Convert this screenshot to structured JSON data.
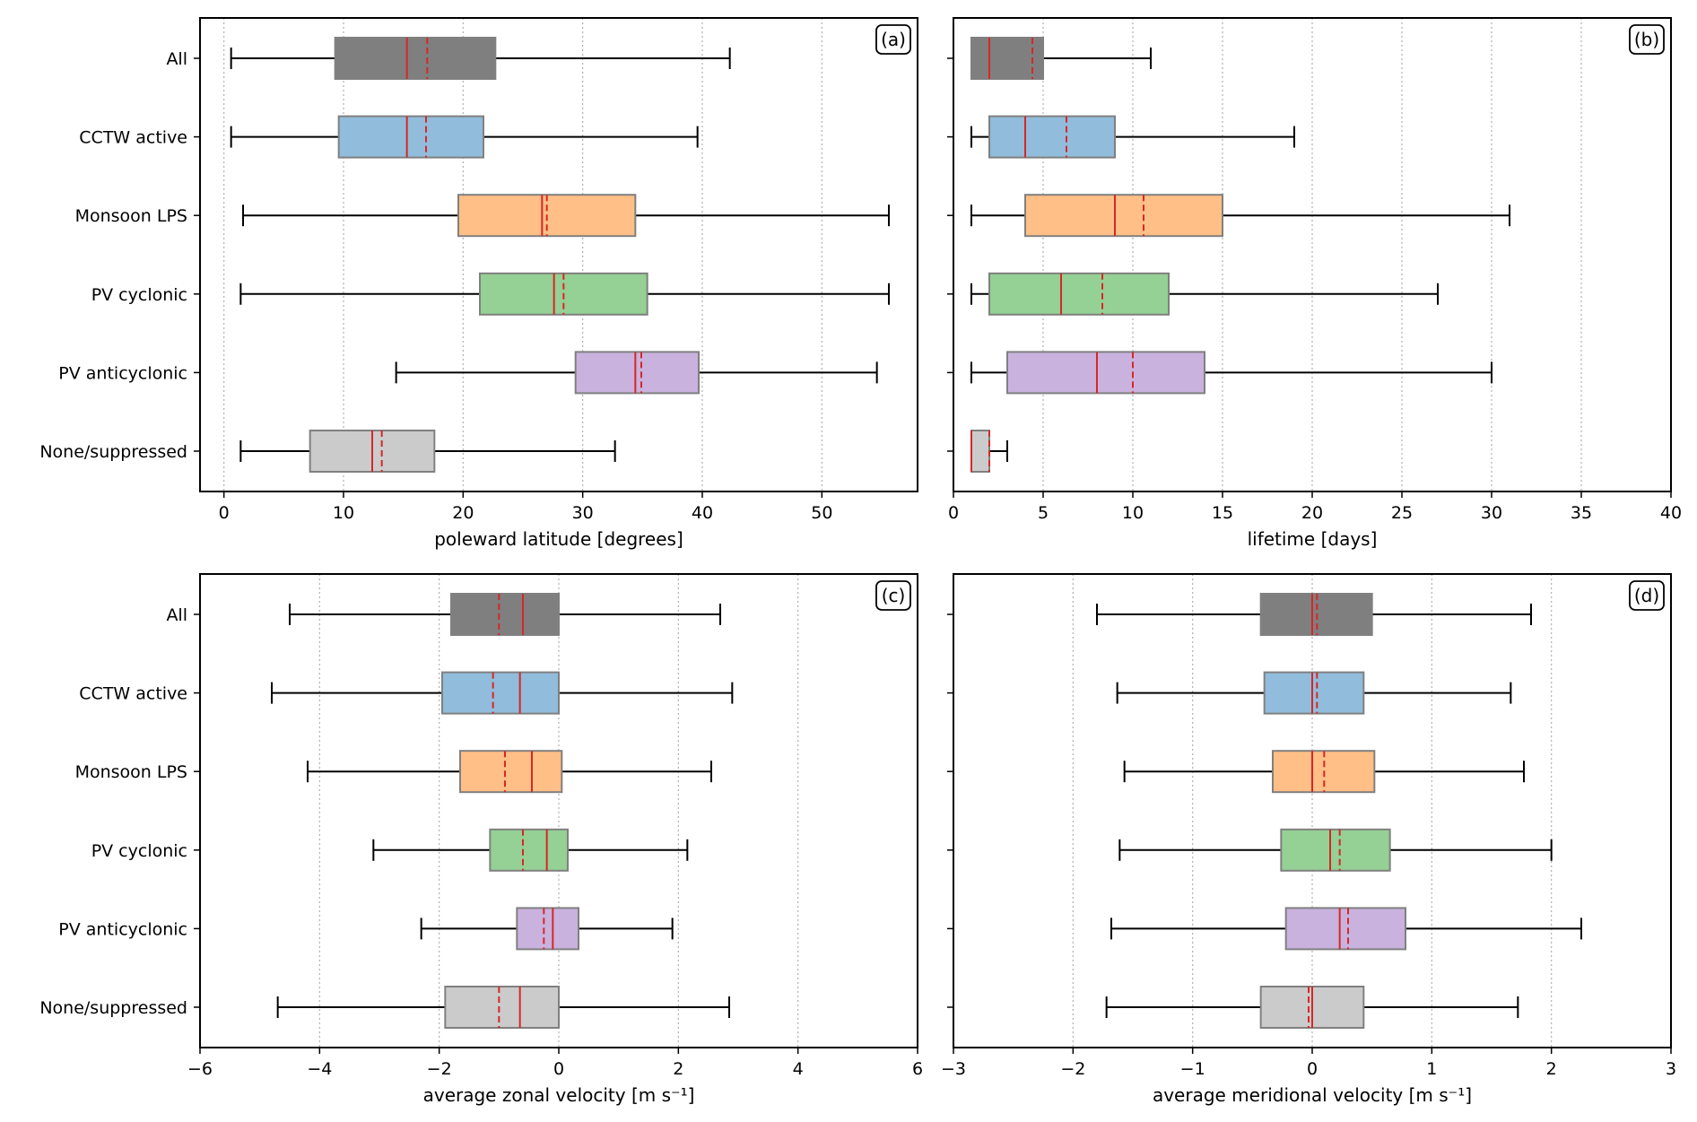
{
  "figure": {
    "categories": [
      "All",
      "CCTW active",
      "Monsoon LPS",
      "PV cyclonic",
      "PV anticyclonic",
      "None/suppressed"
    ],
    "colors": {
      "All": "#7f7f7f",
      "CCTW active": "#91bcdb",
      "Monsoon LPS": "#ffbf86",
      "PV cyclonic": "#95d095",
      "PV anticyclonic": "#c9b2de",
      "None/suppressed": "#cbcbcb"
    },
    "median_color": "#d62728",
    "mean_color": "#d62728",
    "box_edge_color": "#808080"
  },
  "chart_data": [
    {
      "panel": "(a)",
      "type": "boxplot",
      "orientation": "horizontal",
      "xlabel": "poleward latitude [degrees]",
      "xlim": [
        -2,
        58
      ],
      "xticks": [
        0,
        10,
        20,
        30,
        40,
        50
      ],
      "xtick_labels": [
        "0",
        "10",
        "20",
        "30",
        "40",
        "50"
      ],
      "grid": "x-dotted",
      "show_ylabels": true,
      "series": [
        {
          "name": "All",
          "whislo": 0.6,
          "q1": 9.3,
          "median": 15.3,
          "mean": 17.0,
          "q3": 22.7,
          "whishi": 42.3
        },
        {
          "name": "CCTW active",
          "whislo": 0.6,
          "q1": 9.6,
          "median": 15.3,
          "mean": 16.9,
          "q3": 21.7,
          "whishi": 39.6
        },
        {
          "name": "Monsoon LPS",
          "whislo": 1.6,
          "q1": 19.6,
          "median": 26.6,
          "mean": 27.0,
          "q3": 34.4,
          "whishi": 55.6
        },
        {
          "name": "PV cyclonic",
          "whislo": 1.4,
          "q1": 21.4,
          "median": 27.6,
          "mean": 28.4,
          "q3": 35.4,
          "whishi": 55.6
        },
        {
          "name": "PV anticyclonic",
          "whislo": 14.4,
          "q1": 29.4,
          "median": 34.4,
          "mean": 34.9,
          "q3": 39.7,
          "whishi": 54.6
        },
        {
          "name": "None/suppressed",
          "whislo": 1.4,
          "q1": 7.2,
          "median": 12.4,
          "mean": 13.2,
          "q3": 17.6,
          "whishi": 32.7
        }
      ]
    },
    {
      "panel": "(b)",
      "type": "boxplot",
      "orientation": "horizontal",
      "xlabel": "lifetime [days]",
      "xlim": [
        0,
        40
      ],
      "xticks": [
        0,
        5,
        10,
        15,
        20,
        25,
        30,
        35,
        40
      ],
      "xtick_labels": [
        "0",
        "5",
        "10",
        "15",
        "20",
        "25",
        "30",
        "35",
        "40"
      ],
      "grid": "x-dotted",
      "show_ylabels": false,
      "series": [
        {
          "name": "All",
          "whislo": 1,
          "q1": 1,
          "median": 2,
          "mean": 4.4,
          "q3": 5,
          "whishi": 11
        },
        {
          "name": "CCTW active",
          "whislo": 1,
          "q1": 2,
          "median": 4,
          "mean": 6.3,
          "q3": 9,
          "whishi": 19
        },
        {
          "name": "Monsoon LPS",
          "whislo": 1,
          "q1": 4,
          "median": 9,
          "mean": 10.6,
          "q3": 15,
          "whishi": 31
        },
        {
          "name": "PV cyclonic",
          "whislo": 1,
          "q1": 2,
          "median": 6,
          "mean": 8.3,
          "q3": 12,
          "whishi": 27
        },
        {
          "name": "PV anticyclonic",
          "whislo": 1,
          "q1": 3,
          "median": 8,
          "mean": 10,
          "q3": 14,
          "whishi": 30
        },
        {
          "name": "None/suppressed",
          "whislo": 1,
          "q1": 1,
          "median": 1,
          "mean": 2,
          "q3": 2,
          "whishi": 3
        }
      ]
    },
    {
      "panel": "(c)",
      "type": "boxplot",
      "orientation": "horizontal",
      "xlabel": "average zonal velocity [m s⁻¹]",
      "xlim": [
        -6,
        6
      ],
      "xticks": [
        -6,
        -4,
        -2,
        0,
        2,
        4,
        6
      ],
      "xtick_labels": [
        "−6",
        "−4",
        "−2",
        "0",
        "2",
        "4",
        "6"
      ],
      "grid": "x-dotted",
      "show_ylabels": true,
      "series": [
        {
          "name": "All",
          "whislo": -4.5,
          "q1": -1.8,
          "median": -0.6,
          "mean": -1.0,
          "q3": 0.0,
          "whishi": 2.7
        },
        {
          "name": "CCTW active",
          "whislo": -4.8,
          "q1": -1.95,
          "median": -0.65,
          "mean": -1.1,
          "q3": 0.0,
          "whishi": 2.9
        },
        {
          "name": "Monsoon LPS",
          "whislo": -4.2,
          "q1": -1.65,
          "median": -0.45,
          "mean": -0.9,
          "q3": 0.05,
          "whishi": 2.55
        },
        {
          "name": "PV cyclonic",
          "whislo": -3.1,
          "q1": -1.15,
          "median": -0.2,
          "mean": -0.6,
          "q3": 0.15,
          "whishi": 2.15
        },
        {
          "name": "PV anticyclonic",
          "whislo": -2.3,
          "q1": -0.7,
          "median": -0.1,
          "mean": -0.25,
          "q3": 0.33,
          "whishi": 1.9
        },
        {
          "name": "None/suppressed",
          "whislo": -4.7,
          "q1": -1.9,
          "median": -0.65,
          "mean": -1.0,
          "q3": 0.0,
          "whishi": 2.85
        }
      ]
    },
    {
      "panel": "(d)",
      "type": "boxplot",
      "orientation": "horizontal",
      "xlabel": "average meridional velocity [m s⁻¹]",
      "xlim": [
        -3,
        3
      ],
      "xticks": [
        -3,
        -2,
        -1,
        0,
        1,
        2,
        3
      ],
      "xtick_labels": [
        "−3",
        "−2",
        "−1",
        "0",
        "1",
        "2",
        "3"
      ],
      "grid": "x-dotted",
      "show_ylabels": false,
      "series": [
        {
          "name": "All",
          "whislo": -1.8,
          "q1": -0.43,
          "median": 0.0,
          "mean": 0.04,
          "q3": 0.5,
          "whishi": 1.83
        },
        {
          "name": "CCTW active",
          "whislo": -1.63,
          "q1": -0.4,
          "median": 0.0,
          "mean": 0.04,
          "q3": 0.43,
          "whishi": 1.66
        },
        {
          "name": "Monsoon LPS",
          "whislo": -1.57,
          "q1": -0.33,
          "median": 0.0,
          "mean": 0.1,
          "q3": 0.52,
          "whishi": 1.77
        },
        {
          "name": "PV cyclonic",
          "whislo": -1.61,
          "q1": -0.26,
          "median": 0.15,
          "mean": 0.23,
          "q3": 0.65,
          "whishi": 2.0
        },
        {
          "name": "PV anticyclonic",
          "whislo": -1.68,
          "q1": -0.22,
          "median": 0.23,
          "mean": 0.3,
          "q3": 0.78,
          "whishi": 2.25
        },
        {
          "name": "None/suppressed",
          "whislo": -1.72,
          "q1": -0.43,
          "median": 0.0,
          "mean": -0.03,
          "q3": 0.43,
          "whishi": 1.72
        }
      ]
    }
  ]
}
